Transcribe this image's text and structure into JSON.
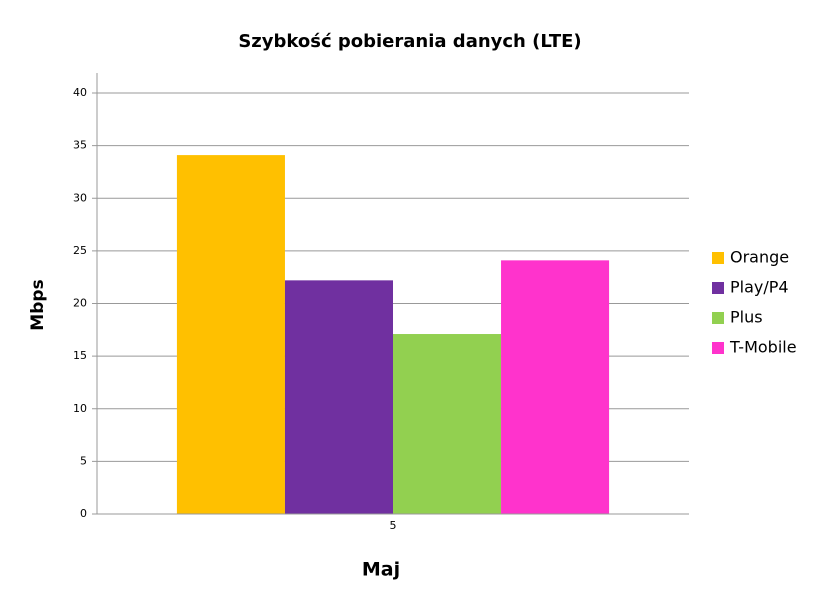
{
  "chart_data": {
    "type": "bar",
    "title": "Szybkość pobierania danych (LTE)",
    "x_label": "Maj",
    "y_label": "Mbps",
    "categories": [
      "5"
    ],
    "series": [
      {
        "name": "Orange",
        "color": "#ffc000",
        "values": [
          34.1
        ]
      },
      {
        "name": "Play/P4",
        "color": "#7030a0",
        "values": [
          22.2
        ]
      },
      {
        "name": "Plus",
        "color": "#92d050",
        "values": [
          17.1
        ]
      },
      {
        "name": "T-Mobile",
        "color": "#ff33cc",
        "values": [
          24.1
        ]
      }
    ],
    "ylim": [
      0,
      40
    ],
    "yticks": [
      0,
      5,
      10,
      15,
      20,
      25,
      30,
      35,
      40
    ],
    "grid": true,
    "legend": "right"
  }
}
